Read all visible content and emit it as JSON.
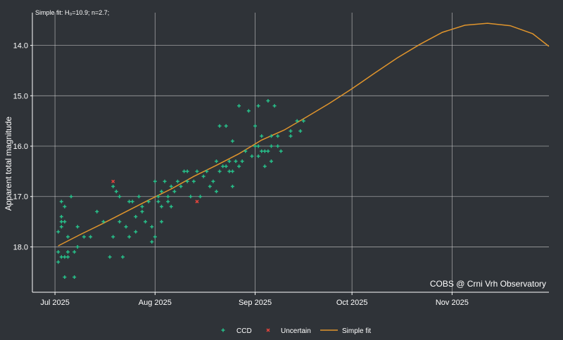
{
  "subtitle": "Simple fit: H₀=10.9; n=2.7;",
  "watermark": "COBS @ Crni Vrh Observatory",
  "chart_data": {
    "type": "scatter",
    "title": "",
    "subtitle": "Simple fit: H₀=10.9; n=2.7;",
    "xlabel": "",
    "ylabel": "Apparent total magnitude",
    "x_ticks": [
      "Jul 2025",
      "Aug 2025",
      "Sep 2025",
      "Oct 2025",
      "Nov 2025"
    ],
    "x_tick_dates": [
      "2025-07-01",
      "2025-08-01",
      "2025-09-01",
      "2025-10-01",
      "2025-11-01"
    ],
    "xlim": [
      "2025-06-24",
      "2025-12-01"
    ],
    "ylim": [
      13.35,
      18.9
    ],
    "y_reversed": true,
    "y_ticks": [
      14.0,
      15.0,
      16.0,
      17.0,
      18.0
    ],
    "y_tick_labels": [
      "14.0",
      "15.0",
      "16.0",
      "17.0",
      "18.0"
    ],
    "grid": true,
    "legend_position": "bottom",
    "colors": {
      "ccd": "#27c08a",
      "uncertain": "#e8453c",
      "fit": "#e1952c",
      "grid": "#c4c4c4",
      "background": "#2f3338"
    },
    "series": [
      {
        "name": "CCD",
        "marker": "plus",
        "points": [
          [
            "2025-07-02",
            17.7
          ],
          [
            "2025-07-02",
            18.1
          ],
          [
            "2025-07-02",
            18.3
          ],
          [
            "2025-07-03",
            17.1
          ],
          [
            "2025-07-03",
            17.4
          ],
          [
            "2025-07-03",
            17.5
          ],
          [
            "2025-07-03",
            17.6
          ],
          [
            "2025-07-03",
            18.2
          ],
          [
            "2025-07-04",
            17.2
          ],
          [
            "2025-07-04",
            17.5
          ],
          [
            "2025-07-04",
            18.2
          ],
          [
            "2025-07-04",
            18.6
          ],
          [
            "2025-07-05",
            17.8
          ],
          [
            "2025-07-05",
            18.1
          ],
          [
            "2025-07-05",
            18.2
          ],
          [
            "2025-07-06",
            17.0
          ],
          [
            "2025-07-07",
            18.1
          ],
          [
            "2025-07-07",
            18.6
          ],
          [
            "2025-07-08",
            17.6
          ],
          [
            "2025-07-08",
            18.0
          ],
          [
            "2025-07-10",
            17.8
          ],
          [
            "2025-07-12",
            17.8
          ],
          [
            "2025-07-14",
            17.3
          ],
          [
            "2025-07-16",
            17.5
          ],
          [
            "2025-07-18",
            18.2
          ],
          [
            "2025-07-19",
            16.8
          ],
          [
            "2025-07-19",
            17.8
          ],
          [
            "2025-07-20",
            16.9
          ],
          [
            "2025-07-21",
            17.0
          ],
          [
            "2025-07-21",
            17.5
          ],
          [
            "2025-07-22",
            18.2
          ],
          [
            "2025-07-23",
            17.6
          ],
          [
            "2025-07-24",
            17.1
          ],
          [
            "2025-07-24",
            17.8
          ],
          [
            "2025-07-25",
            17.1
          ],
          [
            "2025-07-26",
            17.4
          ],
          [
            "2025-07-26",
            17.7
          ],
          [
            "2025-07-27",
            17.0
          ],
          [
            "2025-07-28",
            17.2
          ],
          [
            "2025-07-28",
            17.3
          ],
          [
            "2025-07-29",
            17.5
          ],
          [
            "2025-07-30",
            17.1
          ],
          [
            "2025-07-31",
            17.6
          ],
          [
            "2025-07-31",
            17.9
          ],
          [
            "2025-08-01",
            17.8
          ],
          [
            "2025-08-01",
            16.7
          ],
          [
            "2025-08-02",
            17.0
          ],
          [
            "2025-08-02",
            17.1
          ],
          [
            "2025-08-03",
            16.9
          ],
          [
            "2025-08-03",
            17.2
          ],
          [
            "2025-08-03",
            17.5
          ],
          [
            "2025-08-04",
            16.7
          ],
          [
            "2025-08-05",
            17.0
          ],
          [
            "2025-08-05",
            17.1
          ],
          [
            "2025-08-06",
            16.8
          ],
          [
            "2025-08-06",
            17.2
          ],
          [
            "2025-08-07",
            16.9
          ],
          [
            "2025-08-08",
            16.7
          ],
          [
            "2025-08-09",
            16.8
          ],
          [
            "2025-08-10",
            16.5
          ],
          [
            "2025-08-11",
            16.5
          ],
          [
            "2025-08-11",
            16.7
          ],
          [
            "2025-08-12",
            17.0
          ],
          [
            "2025-08-13",
            16.7
          ],
          [
            "2025-08-14",
            16.5
          ],
          [
            "2025-08-15",
            17.0
          ],
          [
            "2025-08-16",
            16.6
          ],
          [
            "2025-08-17",
            16.5
          ],
          [
            "2025-08-18",
            16.8
          ],
          [
            "2025-08-19",
            16.7
          ],
          [
            "2025-08-20",
            16.3
          ],
          [
            "2025-08-20",
            16.9
          ],
          [
            "2025-08-21",
            15.6
          ],
          [
            "2025-08-21",
            16.5
          ],
          [
            "2025-08-22",
            16.4
          ],
          [
            "2025-08-23",
            15.6
          ],
          [
            "2025-08-23",
            16.4
          ],
          [
            "2025-08-24",
            16.3
          ],
          [
            "2025-08-24",
            16.5
          ],
          [
            "2025-08-25",
            15.9
          ],
          [
            "2025-08-25",
            16.5
          ],
          [
            "2025-08-25",
            16.8
          ],
          [
            "2025-08-26",
            16.3
          ],
          [
            "2025-08-27",
            15.2
          ],
          [
            "2025-08-27",
            16.4
          ],
          [
            "2025-08-28",
            16.3
          ],
          [
            "2025-08-29",
            16.1
          ],
          [
            "2025-08-30",
            15.3
          ],
          [
            "2025-08-31",
            16.2
          ],
          [
            "2025-09-01",
            15.6
          ],
          [
            "2025-09-01",
            16.0
          ],
          [
            "2025-09-02",
            15.2
          ],
          [
            "2025-09-02",
            16.0
          ],
          [
            "2025-09-02",
            16.2
          ],
          [
            "2025-09-03",
            15.8
          ],
          [
            "2025-09-03",
            16.1
          ],
          [
            "2025-09-04",
            16.1
          ],
          [
            "2025-09-04",
            16.4
          ],
          [
            "2025-09-05",
            15.1
          ],
          [
            "2025-09-05",
            16.1
          ],
          [
            "2025-09-06",
            15.8
          ],
          [
            "2025-09-06",
            16.3
          ],
          [
            "2025-09-06",
            16.0
          ],
          [
            "2025-09-07",
            15.2
          ],
          [
            "2025-09-08",
            15.8
          ],
          [
            "2025-09-08",
            16.0
          ],
          [
            "2025-09-09",
            16.1
          ],
          [
            "2025-09-12",
            15.7
          ],
          [
            "2025-09-12",
            15.8
          ],
          [
            "2025-09-14",
            15.5
          ],
          [
            "2025-09-15",
            15.7
          ],
          [
            "2025-09-16",
            15.5
          ]
        ]
      },
      {
        "name": "Uncertain",
        "marker": "x",
        "points": [
          [
            "2025-07-19",
            16.7
          ],
          [
            "2025-08-14",
            17.1
          ]
        ]
      },
      {
        "name": "Simple fit",
        "type": "line",
        "points": [
          [
            "2025-07-02",
            17.98
          ],
          [
            "2025-07-09",
            17.75
          ],
          [
            "2025-07-16",
            17.53
          ],
          [
            "2025-07-23",
            17.3
          ],
          [
            "2025-07-30",
            17.07
          ],
          [
            "2025-08-06",
            16.85
          ],
          [
            "2025-08-13",
            16.6
          ],
          [
            "2025-08-20",
            16.38
          ],
          [
            "2025-08-27",
            16.15
          ],
          [
            "2025-09-03",
            15.88
          ],
          [
            "2025-09-10",
            15.68
          ],
          [
            "2025-09-17",
            15.42
          ],
          [
            "2025-09-24",
            15.15
          ],
          [
            "2025-10-01",
            14.86
          ],
          [
            "2025-10-08",
            14.55
          ],
          [
            "2025-10-15",
            14.25
          ],
          [
            "2025-10-22",
            13.98
          ],
          [
            "2025-10-29",
            13.74
          ],
          [
            "2025-11-05",
            13.6
          ],
          [
            "2025-11-12",
            13.56
          ],
          [
            "2025-11-19",
            13.61
          ],
          [
            "2025-11-26",
            13.77
          ],
          [
            "2025-12-01",
            14.02
          ]
        ]
      }
    ]
  }
}
